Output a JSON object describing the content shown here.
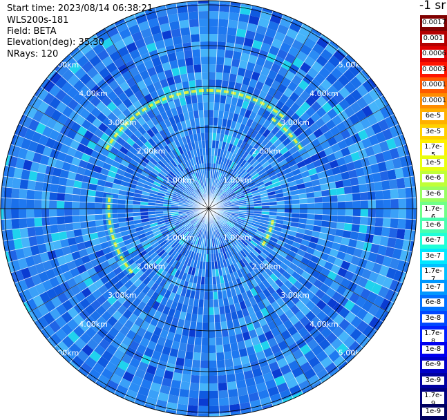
{
  "header": {
    "start_time": "Start time: 2023/08/14 06:38:21",
    "instrument": "WLS200s-181",
    "field": "Field: BETA",
    "elevation": "Elevation(deg): 35.30",
    "nrays": "NRays: 120"
  },
  "range_rings": [
    {
      "label": "1.00km",
      "km": 1
    },
    {
      "label": "2.00km",
      "km": 2
    },
    {
      "label": "3.00km",
      "km": 3
    },
    {
      "label": "4.00km",
      "km": 4
    },
    {
      "label": "5.00km",
      "km": 5
    }
  ],
  "colorbar": {
    "title": "-1 sr",
    "labels": [
      "0.0017",
      "0.001",
      "0.0006",
      "0.0003",
      "0.00017",
      "0.0001",
      "6e-5",
      "3e-5",
      "1.7e-5",
      "1e-5",
      "6e-6",
      "3e-6",
      "1.7e-6",
      "1e-6",
      "6e-7",
      "3e-7",
      "1.7e-7",
      "1e-7",
      "6e-8",
      "3e-8",
      "1.7e-8",
      "1e-8",
      "6e-9",
      "3e-9",
      "1.7e-9",
      "1e-9"
    ],
    "colors": [
      "#800000",
      "#b40000",
      "#e00000",
      "#ff1400",
      "#ff5a00",
      "#ff8c00",
      "#ffb000",
      "#ffd000",
      "#fff000",
      "#e8ff10",
      "#c0ff38",
      "#98ff60",
      "#70ff88",
      "#48ffb0",
      "#20ffd8",
      "#00e8ff",
      "#00c0ff",
      "#0098ff",
      "#0070ff",
      "#0048ff",
      "#0020ff",
      "#0000f0",
      "#0000c8",
      "#0000a0",
      "#000080",
      "#000060"
    ]
  },
  "scan": {
    "features": [
      {
        "az_from": 300,
        "az_to": 360,
        "km": 2.9
      },
      {
        "az_from": 0,
        "az_to": 40,
        "km": 2.9
      },
      {
        "az_from": 35,
        "az_to": 58,
        "km": 2.7
      },
      {
        "az_from": 100,
        "az_to": 125,
        "km": 1.6
      },
      {
        "az_from": 230,
        "az_to": 278,
        "km": 2.45
      }
    ]
  }
}
